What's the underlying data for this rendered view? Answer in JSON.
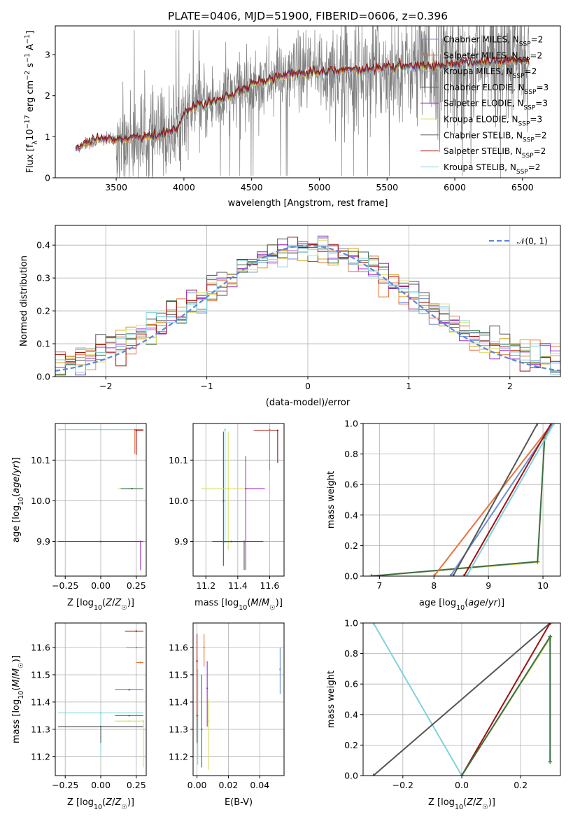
{
  "title": "PLATE=0406, MJD=51900, FIBERID=0606, z=0.396",
  "colors": {
    "chabrier_miles": "#6b8fd6",
    "salpeter_miles": "#e8733a",
    "kroupa_miles": "#d4a017",
    "chabrier_elodie": "#3c6e47",
    "salpeter_elodie": "#9b30c8",
    "kroupa_elodie": "#d8e068",
    "chabrier_stelib": "#555555",
    "salpeter_stelib": "#a01010",
    "kroupa_stelib": "#7fd3dc",
    "data": "#7f7f7f",
    "normal": "#5b86d8",
    "grid": "#b0b0b0"
  },
  "chart_data": [
    {
      "id": "spectrum",
      "type": "line",
      "xlabel": "wavelength [Angstrom, rest frame]",
      "ylabel": "Flux [f_λ 10^-17 erg cm^-2 s^-1 A^-1]",
      "xlim": [
        3050,
        6780
      ],
      "ylim": [
        0,
        3.7
      ],
      "xticks": [
        3500,
        4000,
        4500,
        5000,
        5500,
        6000,
        6500
      ],
      "yticks": [
        0,
        1,
        2,
        3
      ],
      "grid": false,
      "legend_position": "top-right",
      "legend": [
        {
          "label": "Chabrier MILES, N",
          "sub": "SSP",
          "tail": "=2",
          "color": "chabrier_miles"
        },
        {
          "label": "Salpeter MILES, N",
          "sub": "SSP",
          "tail": "=2",
          "color": "salpeter_miles"
        },
        {
          "label": "Kroupa MILES, N",
          "sub": "SSP",
          "tail": "=2",
          "color": "kroupa_miles"
        },
        {
          "label": "Chabrier ELODIE, N",
          "sub": "SSP",
          "tail": "=3",
          "color": "chabrier_elodie"
        },
        {
          "label": "Salpeter ELODIE, N",
          "sub": "SSP",
          "tail": "=3",
          "color": "salpeter_elodie"
        },
        {
          "label": "Kroupa ELODIE, N",
          "sub": "SSP",
          "tail": "=3",
          "color": "kroupa_elodie"
        },
        {
          "label": "Chabrier STELIB, N",
          "sub": "SSP",
          "tail": "=2",
          "color": "chabrier_stelib"
        },
        {
          "label": "Salpeter STELIB, N",
          "sub": "SSP",
          "tail": "=2",
          "color": "salpeter_stelib"
        },
        {
          "label": "Kroupa STELIB, N",
          "sub": "SSP",
          "tail": "=2",
          "color": "kroupa_stelib"
        }
      ],
      "model_continuum": [
        [
          3200,
          0.68
        ],
        [
          3260,
          0.82
        ],
        [
          3400,
          0.92
        ],
        [
          3600,
          0.95
        ],
        [
          3800,
          1.0
        ],
        [
          3950,
          1.2
        ],
        [
          4000,
          1.55
        ],
        [
          4100,
          1.75
        ],
        [
          4300,
          1.95
        ],
        [
          4500,
          2.25
        ],
        [
          4700,
          2.45
        ],
        [
          4900,
          2.55
        ],
        [
          5100,
          2.6
        ],
        [
          5300,
          2.62
        ],
        [
          5500,
          2.68
        ],
        [
          5700,
          2.7
        ],
        [
          5900,
          2.72
        ],
        [
          6100,
          2.78
        ],
        [
          6300,
          2.82
        ],
        [
          6550,
          2.85
        ]
      ],
      "data_range": [
        3200,
        6550
      ]
    },
    {
      "id": "residuals",
      "type": "histogram",
      "xlabel": "(data-model)/error",
      "ylabel": "Normed distribution",
      "xlim": [
        -2.5,
        2.5
      ],
      "ylim": [
        0,
        0.46
      ],
      "xticks": [
        -2,
        -1,
        0,
        1,
        2
      ],
      "yticks": [
        0.0,
        0.1,
        0.2,
        0.3,
        0.4
      ],
      "grid": true,
      "legend_position": "top-right",
      "legend": [
        {
          "label": "𝒩(0, 1)",
          "style": "dashed",
          "color": "normal"
        }
      ],
      "bin_width": 0.1
    },
    {
      "id": "age_vs_Z",
      "type": "errorbar",
      "xlabel": "Z [log10(Z/Z☉)]",
      "ylabel": "age [log10(age/yr)]",
      "xlim": [
        -0.32,
        0.32
      ],
      "ylim": [
        9.815,
        10.19
      ],
      "xticks": [
        -0.25,
        0.0,
        0.25
      ],
      "yticks": [
        9.9,
        10.0,
        10.1
      ],
      "grid": true,
      "points": [
        {
          "model": "kroupa_stelib",
          "x": 0.0,
          "xerr": [
            0.3,
            0.3
          ],
          "y": 10.175,
          "yerr": [
            0,
            0
          ]
        },
        {
          "model": "salpeter_miles",
          "x": 0.24,
          "xerr": [
            0.0,
            0.06
          ],
          "y": 10.175,
          "yerr": [
            0.06,
            0
          ]
        },
        {
          "model": "salpeter_stelib",
          "x": 0.25,
          "xerr": [
            0.0,
            0.05
          ],
          "y": 10.173,
          "yerr": [
            0.06,
            0
          ]
        },
        {
          "model": "kroupa_elodie",
          "x": 0.2,
          "xerr": [
            0.08,
            0.1
          ],
          "y": 10.03,
          "yerr": [
            0,
            0
          ]
        },
        {
          "model": "chabrier_elodie",
          "x": 0.22,
          "xerr": [
            0.08,
            0.08
          ],
          "y": 10.03,
          "yerr": [
            0,
            0
          ]
        },
        {
          "model": "chabrier_stelib",
          "x": 0.0,
          "xerr": [
            0.3,
            0.3
          ],
          "y": 9.9,
          "yerr": [
            0,
            0
          ]
        },
        {
          "model": "salpeter_elodie",
          "x": 0.28,
          "xerr": [
            0.0,
            0.02
          ],
          "y": 9.9,
          "yerr": [
            0.07,
            0
          ]
        }
      ]
    },
    {
      "id": "age_vs_mass",
      "type": "errorbar",
      "xlabel": "mass [log10(M/M☉)]",
      "ylabel": "",
      "xlim": [
        11.12,
        11.69
      ],
      "ylim": [
        9.815,
        10.19
      ],
      "xticks": [
        11.2,
        11.4,
        11.6
      ],
      "yticks": [
        9.9,
        10.0,
        10.1
      ],
      "grid": true,
      "points": [
        {
          "model": "kroupa_stelib",
          "x": 11.32,
          "xerr": [
            0,
            0
          ],
          "y": 10.175,
          "yerr": [
            0.28,
            0
          ]
        },
        {
          "model": "chabrier_stelib",
          "x": 11.31,
          "xerr": [
            0,
            0
          ],
          "y": 10.0,
          "yerr": [
            0.16,
            0.17
          ]
        },
        {
          "model": "salpeter_stelib",
          "x": 11.65,
          "xerr": [
            0.15,
            0.0
          ],
          "y": 10.173,
          "yerr": [
            0.08,
            0
          ]
        },
        {
          "model": "salpeter_miles",
          "x": 11.6,
          "xerr": [
            0.0,
            0.0
          ],
          "y": 10.175,
          "yerr": [
            0.1,
            0
          ]
        },
        {
          "model": "kroupa_elodie",
          "x": 11.34,
          "xerr": [
            0.17,
            0.12
          ],
          "y": 10.03,
          "yerr": [
            0.15,
            0.14
          ]
        },
        {
          "model": "salpeter_elodie",
          "x": 11.45,
          "xerr": [
            0.0,
            0.12
          ],
          "y": 10.03,
          "yerr": [
            0.2,
            0.08
          ]
        },
        {
          "model": "chabrier_elodie",
          "x": 11.36,
          "xerr": [
            0.06,
            0.06
          ],
          "y": 9.9,
          "yerr": [
            0.0,
            0.0
          ]
        },
        {
          "model": "chabrier_stelib",
          "x": 11.44,
          "xerr": [
            0.2,
            0.12
          ],
          "y": 9.9,
          "yerr": [
            0.07,
            0.0
          ]
        }
      ]
    },
    {
      "id": "cum_age",
      "type": "line",
      "xlabel": "age [log10(age/yr)]",
      "ylabel": "mass weight",
      "xlim": [
        6.7,
        10.32
      ],
      "ylim": [
        0,
        1.0
      ],
      "xticks": [
        7,
        8,
        9,
        10
      ],
      "yticks": [
        0.0,
        0.2,
        0.4,
        0.6,
        0.8,
        1.0
      ],
      "grid": true,
      "series": [
        {
          "model": "kroupa_elodie",
          "x": [
            6.85,
            9.9,
            10.03,
            10.2
          ],
          "y": [
            0.0,
            0.09,
            0.9,
            1.0
          ]
        },
        {
          "model": "chabrier_elodie",
          "x": [
            6.85,
            9.9,
            10.03,
            10.2
          ],
          "y": [
            0.0,
            0.095,
            0.9,
            1.0
          ]
        },
        {
          "model": "salpeter_miles",
          "x": [
            8.0,
            10.17
          ],
          "y": [
            0.0,
            1.0
          ]
        },
        {
          "model": "chabrier_miles",
          "x": [
            8.3,
            10.18
          ],
          "y": [
            0.0,
            1.0
          ]
        },
        {
          "model": "chabrier_stelib",
          "x": [
            8.35,
            9.9
          ],
          "y": [
            0.0,
            1.0
          ]
        },
        {
          "model": "salpeter_stelib",
          "x": [
            8.55,
            10.15
          ],
          "y": [
            0.0,
            1.0
          ]
        },
        {
          "model": "kroupa_stelib",
          "x": [
            8.6,
            10.2
          ],
          "y": [
            0.0,
            1.0
          ]
        }
      ]
    },
    {
      "id": "mass_vs_Z",
      "type": "errorbar",
      "xlabel": "Z [log10(Z/Z☉)]",
      "ylabel": "mass [log10(M/M☉)]",
      "xlim": [
        -0.32,
        0.32
      ],
      "ylim": [
        11.13,
        11.69
      ],
      "xticks": [
        -0.25,
        0.0,
        0.25
      ],
      "yticks": [
        11.2,
        11.3,
        11.4,
        11.5,
        11.6
      ],
      "grid": true,
      "points": [
        {
          "model": "salpeter_stelib",
          "x": 0.25,
          "xerr": [
            0.08,
            0.05
          ],
          "y": 11.66,
          "yerr": [
            0,
            0
          ]
        },
        {
          "model": "chabrier_miles",
          "x": 0.25,
          "xerr": [
            0.07,
            0.05
          ],
          "y": 11.6,
          "yerr": [
            0,
            0
          ]
        },
        {
          "model": "salpeter_miles",
          "x": 0.28,
          "xerr": [
            0.03,
            0.02
          ],
          "y": 11.545,
          "yerr": [
            0,
            0
          ]
        },
        {
          "model": "salpeter_elodie",
          "x": 0.2,
          "xerr": [
            0.1,
            0.1
          ],
          "y": 11.445,
          "yerr": [
            0,
            0
          ]
        },
        {
          "model": "kroupa_stelib",
          "x": 0.0,
          "xerr": [
            0.3,
            0.3
          ],
          "y": 11.36,
          "yerr": [
            0.16,
            0
          ]
        },
        {
          "model": "chabrier_elodie",
          "x": 0.2,
          "xerr": [
            0.1,
            0.1
          ],
          "y": 11.35,
          "yerr": [
            0,
            0
          ]
        },
        {
          "model": "kroupa_elodie",
          "x": 0.2,
          "xerr": [
            0.1,
            0.1
          ],
          "y": 11.33,
          "yerr": [
            0,
            0.0
          ]
        },
        {
          "model": "chabrier_stelib",
          "x": 0.0,
          "xerr": [
            0.3,
            0.3
          ],
          "y": 11.31,
          "yerr": [
            0.06,
            0
          ]
        },
        {
          "model": "kroupa_elodie",
          "x": 0.3,
          "xerr": [
            0,
            0
          ],
          "y": 11.33,
          "yerr": [
            0.17,
            0
          ]
        }
      ]
    },
    {
      "id": "mass_vs_ebv",
      "type": "errorbar",
      "xlabel": "E(B-V)",
      "ylabel": "",
      "xlim": [
        -0.0025,
        0.0555
      ],
      "ylim": [
        11.13,
        11.69
      ],
      "xticks": [
        0.0,
        0.02,
        0.04
      ],
      "yticks": [
        11.2,
        11.3,
        11.4,
        11.5,
        11.6
      ],
      "grid": true,
      "points": [
        {
          "model": "salpeter_stelib",
          "x": 0.0,
          "y": 11.55,
          "yerr": [
            0.3,
            0.1
          ]
        },
        {
          "model": "kroupa_stelib",
          "x": 0.0005,
          "y": 11.35,
          "yerr": [
            0.18,
            0.17
          ]
        },
        {
          "model": "chabrier_stelib",
          "x": 0.0,
          "y": 11.35,
          "yerr": [
            0.1,
            0.0
          ]
        },
        {
          "model": "chabrier_elodie",
          "x": 0.003,
          "y": 11.3,
          "yerr": [
            0.14,
            0.2
          ]
        },
        {
          "model": "salpeter_miles",
          "x": 0.0045,
          "y": 11.6,
          "yerr": [
            0.07,
            0.05
          ]
        },
        {
          "model": "salpeter_elodie",
          "x": 0.0065,
          "y": 11.45,
          "yerr": [
            0.14,
            0.1
          ]
        },
        {
          "model": "kroupa_elodie",
          "x": 0.0075,
          "y": 11.33,
          "yerr": [
            0.18,
            0.08
          ]
        },
        {
          "model": "chabrier_miles",
          "x": 0.053,
          "y": 11.52,
          "yerr": [
            0.09,
            0.08
          ]
        }
      ]
    },
    {
      "id": "cum_Z",
      "type": "line",
      "xlabel": "Z [log10(Z/Z☉)]",
      "ylabel": "mass weight",
      "xlim": [
        -0.335,
        0.335
      ],
      "ylim": [
        0,
        1.0
      ],
      "xticks": [
        -0.2,
        0.0,
        0.2
      ],
      "yticks": [
        0.0,
        0.2,
        0.4,
        0.6,
        0.8,
        1.0
      ],
      "grid": true,
      "series": [
        {
          "model": "kroupa_stelib",
          "x": [
            -0.3,
            0.0
          ],
          "y": [
            1.0,
            0.0
          ]
        },
        {
          "model": "chabrier_stelib",
          "x": [
            -0.3,
            0.3
          ],
          "y": [
            0.0,
            1.0
          ]
        },
        {
          "model": "salpeter_stelib",
          "x": [
            0.0,
            0.3
          ],
          "y": [
            0.0,
            1.0
          ]
        },
        {
          "model": "kroupa_elodie",
          "x": [
            0.0,
            0.3,
            0.3
          ],
          "y": [
            0.0,
            0.9,
            0.09
          ]
        },
        {
          "model": "chabrier_elodie",
          "x": [
            0.0,
            0.3,
            0.3
          ],
          "y": [
            0.0,
            0.91,
            0.09
          ]
        }
      ]
    }
  ]
}
